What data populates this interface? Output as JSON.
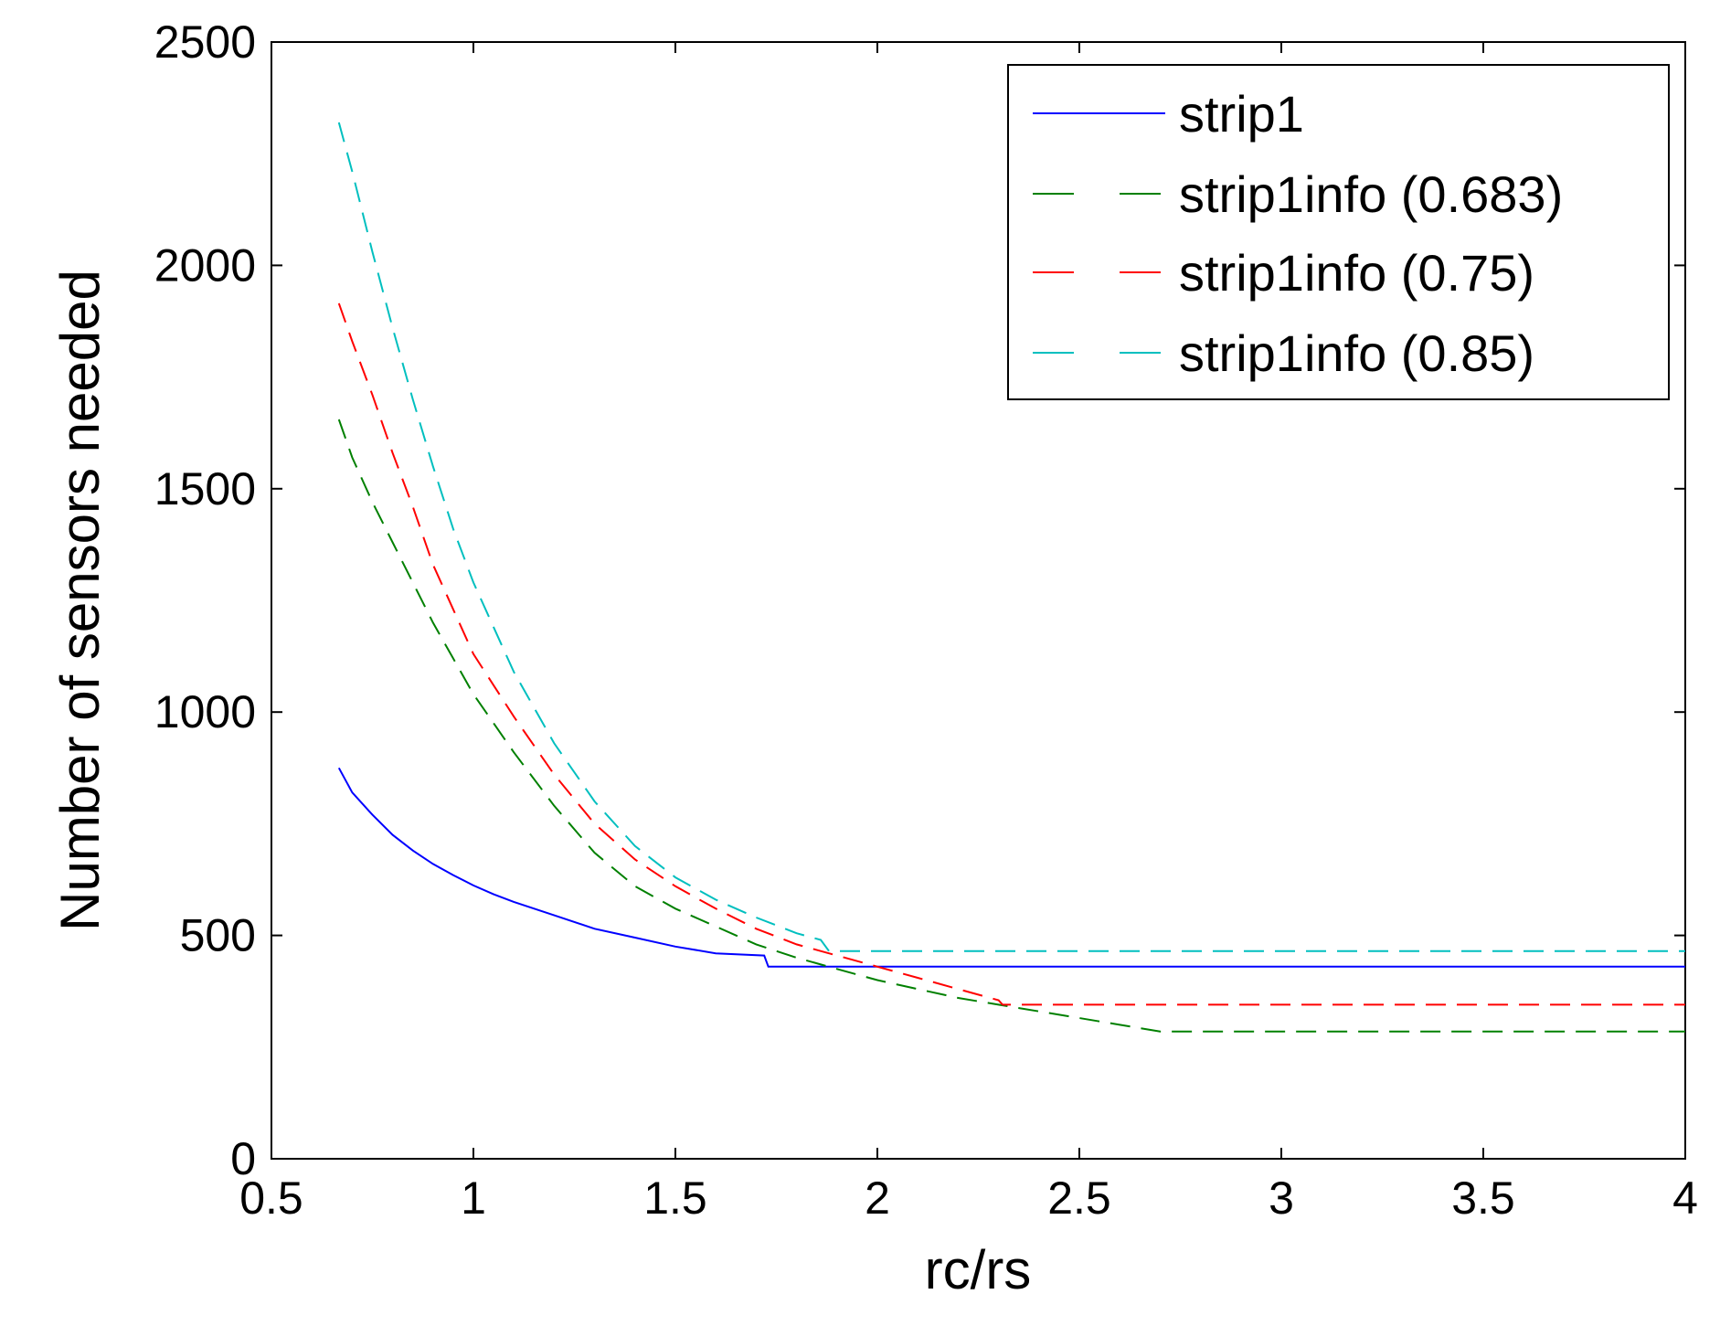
{
  "chart_data": {
    "type": "line",
    "title": "",
    "xlabel": "rc/rs",
    "ylabel": "Number of sensors needed",
    "xlim": [
      0.5,
      4
    ],
    "ylim": [
      0,
      2500
    ],
    "grid": false,
    "x_ticks": [
      {
        "value": 0.5,
        "label": "0.5"
      },
      {
        "value": 1,
        "label": "1"
      },
      {
        "value": 1.5,
        "label": "1.5"
      },
      {
        "value": 2,
        "label": "2"
      },
      {
        "value": 2.5,
        "label": "2.5"
      },
      {
        "value": 3,
        "label": "3"
      },
      {
        "value": 3.5,
        "label": "3.5"
      },
      {
        "value": 4,
        "label": "4"
      }
    ],
    "y_ticks": [
      {
        "value": 0,
        "label": "0"
      },
      {
        "value": 500,
        "label": "500"
      },
      {
        "value": 1000,
        "label": "1000"
      },
      {
        "value": 1500,
        "label": "1500"
      },
      {
        "value": 2000,
        "label": "2000"
      },
      {
        "value": 2500,
        "label": "2500"
      }
    ],
    "legend_position": "top-right",
    "series": [
      {
        "name": "strip1",
        "color": "#0000ff",
        "style": "solid",
        "points": [
          [
            0.667,
            875
          ],
          [
            0.7,
            820
          ],
          [
            0.75,
            770
          ],
          [
            0.8,
            725
          ],
          [
            0.85,
            690
          ],
          [
            0.9,
            660
          ],
          [
            0.95,
            635
          ],
          [
            1.0,
            612
          ],
          [
            1.05,
            592
          ],
          [
            1.1,
            575
          ],
          [
            1.2,
            545
          ],
          [
            1.3,
            515
          ],
          [
            1.4,
            495
          ],
          [
            1.5,
            475
          ],
          [
            1.6,
            460
          ],
          [
            1.72,
            455
          ],
          [
            1.73,
            430
          ],
          [
            2.0,
            430
          ],
          [
            3.0,
            430
          ],
          [
            4.0,
            430
          ]
        ]
      },
      {
        "name": "strip1info (0.683)",
        "color": "#008000",
        "style": "dashed",
        "points": [
          [
            0.667,
            1655
          ],
          [
            0.7,
            1570
          ],
          [
            0.75,
            1470
          ],
          [
            0.8,
            1380
          ],
          [
            0.85,
            1290
          ],
          [
            0.9,
            1200
          ],
          [
            0.95,
            1120
          ],
          [
            1.0,
            1040
          ],
          [
            1.05,
            975
          ],
          [
            1.1,
            910
          ],
          [
            1.2,
            790
          ],
          [
            1.3,
            685
          ],
          [
            1.4,
            610
          ],
          [
            1.5,
            560
          ],
          [
            1.6,
            520
          ],
          [
            1.7,
            480
          ],
          [
            1.8,
            450
          ],
          [
            1.9,
            425
          ],
          [
            2.0,
            400
          ],
          [
            2.1,
            380
          ],
          [
            2.2,
            360
          ],
          [
            2.3,
            345
          ],
          [
            2.4,
            330
          ],
          [
            2.5,
            315
          ],
          [
            2.6,
            300
          ],
          [
            2.7,
            285
          ],
          [
            3.0,
            285
          ],
          [
            4.0,
            285
          ]
        ]
      },
      {
        "name": "strip1info (0.75)",
        "color": "#ff0000",
        "style": "dashed",
        "points": [
          [
            0.667,
            1915
          ],
          [
            0.7,
            1830
          ],
          [
            0.75,
            1710
          ],
          [
            0.8,
            1580
          ],
          [
            0.85,
            1460
          ],
          [
            0.9,
            1330
          ],
          [
            0.95,
            1230
          ],
          [
            1.0,
            1130
          ],
          [
            1.05,
            1060
          ],
          [
            1.1,
            990
          ],
          [
            1.2,
            860
          ],
          [
            1.3,
            750
          ],
          [
            1.4,
            670
          ],
          [
            1.5,
            610
          ],
          [
            1.6,
            560
          ],
          [
            1.7,
            515
          ],
          [
            1.8,
            480
          ],
          [
            1.9,
            455
          ],
          [
            2.0,
            430
          ],
          [
            2.1,
            405
          ],
          [
            2.2,
            380
          ],
          [
            2.3,
            355
          ],
          [
            2.31,
            345
          ],
          [
            4.0,
            345
          ]
        ]
      },
      {
        "name": "strip1info (0.85)",
        "color": "#00bfbf",
        "style": "dashed",
        "points": [
          [
            0.667,
            2320
          ],
          [
            0.7,
            2210
          ],
          [
            0.75,
            2030
          ],
          [
            0.8,
            1860
          ],
          [
            0.85,
            1700
          ],
          [
            0.9,
            1550
          ],
          [
            0.95,
            1410
          ],
          [
            1.0,
            1290
          ],
          [
            1.05,
            1190
          ],
          [
            1.1,
            1090
          ],
          [
            1.2,
            930
          ],
          [
            1.3,
            800
          ],
          [
            1.4,
            700
          ],
          [
            1.5,
            630
          ],
          [
            1.6,
            580
          ],
          [
            1.7,
            540
          ],
          [
            1.8,
            505
          ],
          [
            1.86,
            490
          ],
          [
            1.88,
            465
          ],
          [
            2.0,
            465
          ],
          [
            3.0,
            465
          ],
          [
            4.0,
            465
          ]
        ]
      }
    ]
  }
}
